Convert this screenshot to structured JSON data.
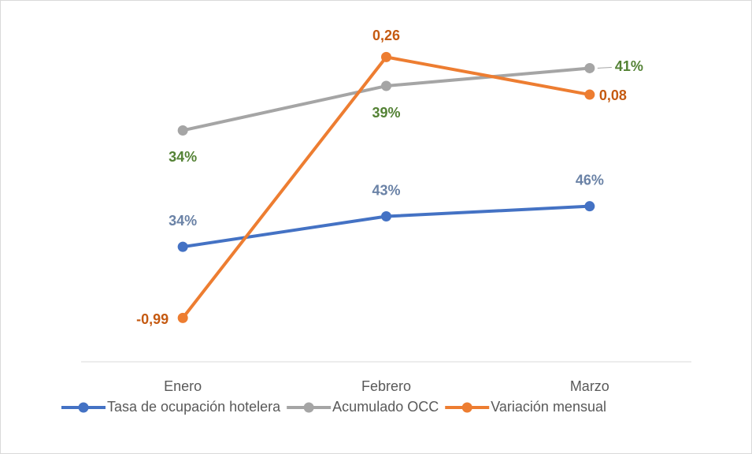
{
  "chart_data": {
    "type": "line",
    "categories": [
      "Enero",
      "Febrero",
      "Marzo"
    ],
    "series": [
      {
        "name": "Tasa de ocupación hotelera",
        "color": "#4472c4",
        "label_color": "#6a82a6",
        "values": [
          34,
          43,
          46
        ],
        "value_labels": [
          "34%",
          "43%",
          "46%"
        ]
      },
      {
        "name": "Acumulado OCC",
        "color": "#a5a5a5",
        "label_color": "#548235",
        "axis": "y2",
        "values": [
          34,
          39,
          41
        ],
        "value_labels": [
          "34%",
          "39%",
          "41%"
        ]
      },
      {
        "name": "Variación mensual",
        "color": "#ed7d31",
        "label_color": "#c55a11",
        "axis": "y3",
        "values": [
          -0.99,
          0.26,
          0.08
        ],
        "value_labels": [
          "-0,99",
          "0,26",
          "0,08"
        ]
      }
    ],
    "ylim": [
      0,
      100
    ],
    "y2lim": [
      8,
      46
    ],
    "y3lim": [
      -1.2,
      0.42
    ],
    "legend": "bottom"
  }
}
